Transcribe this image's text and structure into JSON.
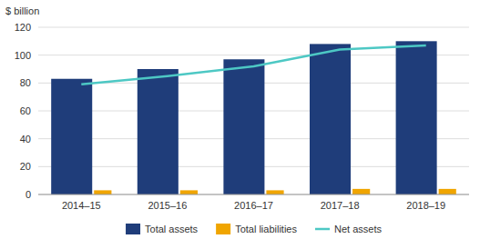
{
  "chart_data": {
    "type": "bar",
    "ylabel": "$ billion",
    "categories": [
      "2014–15",
      "2015–16",
      "2016–17",
      "2017–18",
      "2018–19"
    ],
    "series": [
      {
        "name": "Total assets",
        "type": "bar",
        "color": "#1f3d7a",
        "values": [
          83,
          90,
          97,
          108,
          110
        ]
      },
      {
        "name": "Total liabilities",
        "type": "bar",
        "color": "#f0a500",
        "values": [
          3,
          3,
          3,
          4,
          4
        ]
      },
      {
        "name": "Net assets",
        "type": "line",
        "color": "#4dc8c4",
        "values": [
          79,
          85,
          92,
          104,
          107
        ]
      }
    ],
    "ylim": [
      0,
      120
    ],
    "yticks": [
      0,
      20,
      40,
      60,
      80,
      100,
      120
    ],
    "grid": true,
    "legend": "bottom"
  }
}
